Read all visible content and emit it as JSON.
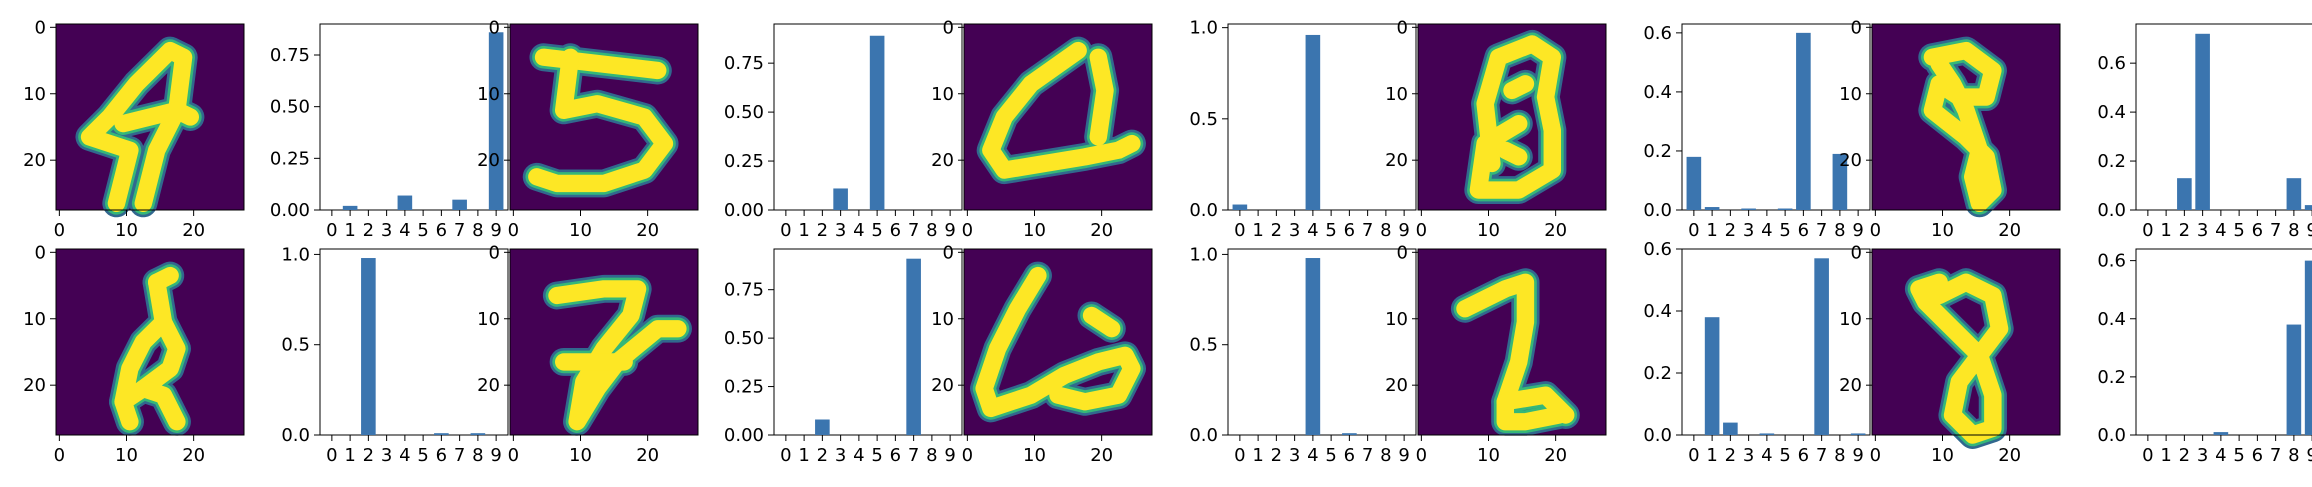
{
  "chart_data": {
    "type": "bar",
    "layout": "2 rows x 5 pairs (digit image + probability bar chart)",
    "image_axis": {
      "xticks": [
        "0",
        "10",
        "20"
      ],
      "yticks": [
        "0",
        "10",
        "20"
      ]
    },
    "bar_axis": {
      "categories": [
        "0",
        "1",
        "2",
        "3",
        "4",
        "5",
        "6",
        "7",
        "8",
        "9"
      ]
    },
    "colors": {
      "bar": "#3b75af",
      "image_bg": "#440154",
      "digit_edge": "#31688e",
      "digit_mid": "#35b779",
      "digit_fill": "#fde725"
    },
    "panels": [
      {
        "image_name": "digit-4",
        "ylim": [
          0,
          0.9
        ],
        "yticks": [
          0,
          0.25,
          0.5,
          0.75
        ],
        "ytick_labels": [
          "0.00",
          "0.25",
          "0.50",
          "0.75"
        ],
        "values": [
          0,
          0.02,
          0,
          0,
          0.07,
          0,
          0,
          0.05,
          0,
          0.86
        ]
      },
      {
        "image_name": "digit-5",
        "ylim": [
          0,
          0.95
        ],
        "yticks": [
          0,
          0.25,
          0.5,
          0.75
        ],
        "ytick_labels": [
          "0.00",
          "0.25",
          "0.50",
          "0.75"
        ],
        "values": [
          0,
          0,
          0,
          0.11,
          0,
          0.89,
          0,
          0,
          0,
          0
        ]
      },
      {
        "image_name": "digit-4-open",
        "ylim": [
          0,
          1.02
        ],
        "yticks": [
          0,
          0.5,
          1.0
        ],
        "ytick_labels": [
          "0.0",
          "0.5",
          "1.0"
        ],
        "values": [
          0.03,
          0,
          0,
          0,
          0.96,
          0,
          0,
          0,
          0,
          0
        ]
      },
      {
        "image_name": "digit-8-filled",
        "ylim": [
          0,
          0.63
        ],
        "yticks": [
          0,
          0.2,
          0.4,
          0.6
        ],
        "ytick_labels": [
          "0.0",
          "0.2",
          "0.4",
          "0.6"
        ],
        "values": [
          0.18,
          0.01,
          0,
          0.005,
          0,
          0.005,
          0.6,
          0,
          0.19,
          0
        ]
      },
      {
        "image_name": "digit-8-loop",
        "ylim": [
          0,
          0.76
        ],
        "yticks": [
          0,
          0.2,
          0.4,
          0.6
        ],
        "ytick_labels": [
          "0.0",
          "0.2",
          "0.4",
          "0.6"
        ],
        "values": [
          0,
          0,
          0.13,
          0.72,
          0,
          0,
          0,
          0,
          0.13,
          0.02
        ]
      },
      {
        "image_name": "digit-8-thin",
        "ylim": [
          0,
          1.03
        ],
        "yticks": [
          0,
          0.5,
          1.0
        ],
        "ytick_labels": [
          "0.0",
          "0.5",
          "1.0"
        ],
        "values": [
          0,
          0,
          0.98,
          0,
          0,
          0,
          0.01,
          0,
          0.01,
          0
        ]
      },
      {
        "image_name": "digit-7",
        "ylim": [
          0,
          0.96
        ],
        "yticks": [
          0,
          0.25,
          0.5,
          0.75
        ],
        "ytick_labels": [
          "0.00",
          "0.25",
          "0.50",
          "0.75"
        ],
        "values": [
          0,
          0,
          0.08,
          0,
          0,
          0,
          0,
          0.91,
          0,
          0
        ]
      },
      {
        "image_name": "digit-4-wide",
        "ylim": [
          0,
          1.03
        ],
        "yticks": [
          0,
          0.5,
          1.0
        ],
        "ytick_labels": [
          "0.0",
          "0.5",
          "1.0"
        ],
        "values": [
          0,
          0,
          0,
          0,
          0.98,
          0,
          0.01,
          0,
          0,
          0
        ]
      },
      {
        "image_name": "digit-1-blocky",
        "ylim": [
          0,
          0.6
        ],
        "yticks": [
          0,
          0.2,
          0.4,
          0.6
        ],
        "ytick_labels": [
          "0.0",
          "0.2",
          "0.4",
          "0.6"
        ],
        "values": [
          0,
          0.38,
          0.04,
          0,
          0.005,
          0,
          0,
          0.57,
          0,
          0.005
        ]
      },
      {
        "image_name": "digit-8-slant",
        "ylim": [
          0,
          0.64
        ],
        "yticks": [
          0,
          0.2,
          0.4,
          0.6
        ],
        "ytick_labels": [
          "0.0",
          "0.2",
          "0.4",
          "0.6"
        ],
        "values": [
          0,
          0,
          0,
          0,
          0.01,
          0,
          0,
          0,
          0.38,
          0.6
        ]
      }
    ]
  }
}
